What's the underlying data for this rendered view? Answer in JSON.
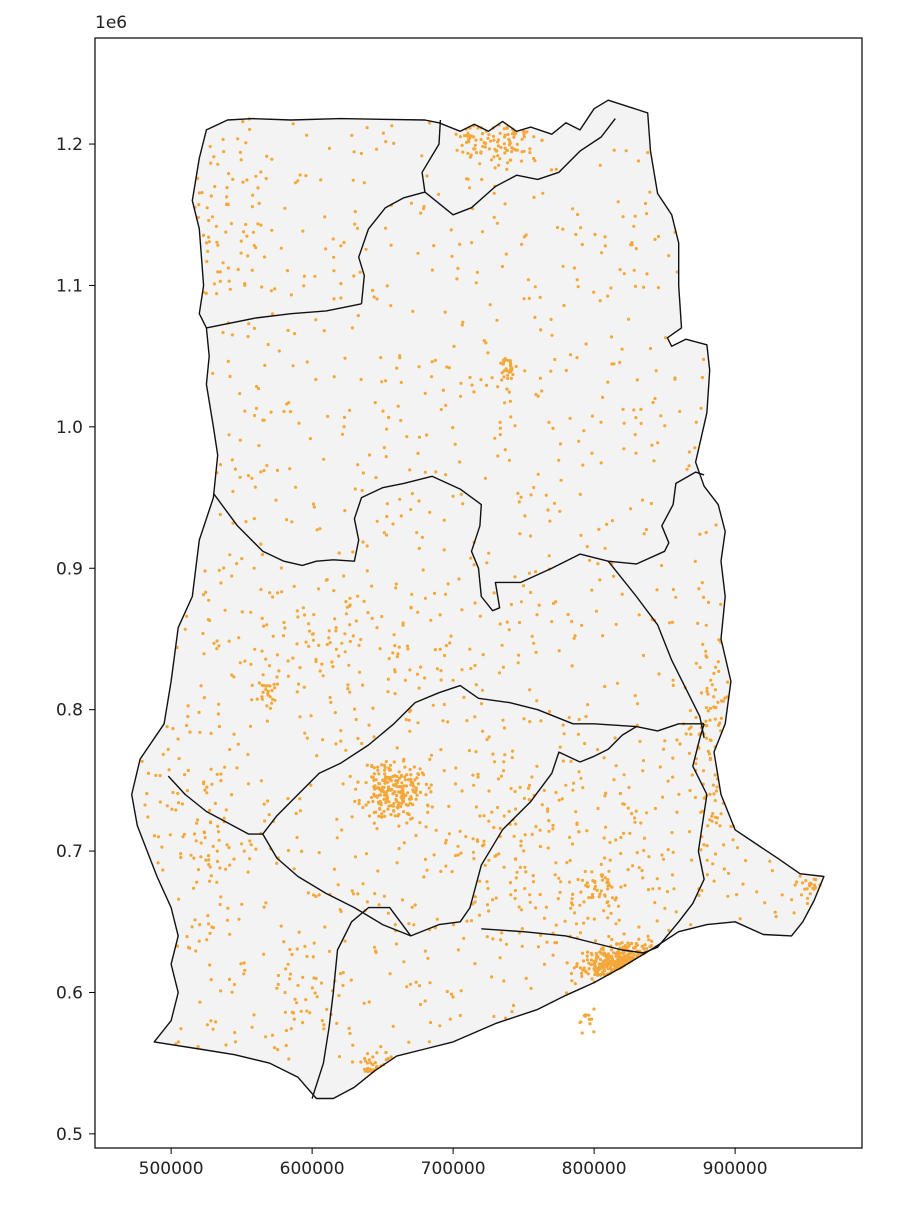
{
  "chart_data": {
    "type": "scatter",
    "title": "",
    "xlabel": "",
    "ylabel": "",
    "y_offset_label": "1e6",
    "xlim": [
      446000,
      990000
    ],
    "ylim": [
      490000,
      1275000
    ],
    "x_ticks": [
      500000,
      600000,
      700000,
      800000,
      900000
    ],
    "x_tick_labels": [
      "500000",
      "600000",
      "700000",
      "800000",
      "900000"
    ],
    "y_ticks": [
      500000,
      600000,
      700000,
      800000,
      900000,
      1000000,
      1100000,
      1200000
    ],
    "y_tick_labels": [
      "0.5",
      "0.6",
      "0.7",
      "0.8",
      "0.9",
      "1.0",
      "1.1",
      "1.2"
    ],
    "grid": false,
    "colors": {
      "land": "#f3f3f3",
      "boundary": "#111111",
      "points": "#f5a83a"
    },
    "regions": [
      {
        "points": [
          [
            488000,
            565000
          ],
          [
            520000,
            560000
          ],
          [
            545000,
            556000
          ],
          [
            570000,
            550000
          ],
          [
            590000,
            540000
          ],
          [
            603000,
            525000
          ],
          [
            615000,
            525000
          ],
          [
            630000,
            533000
          ],
          [
            645000,
            545000
          ],
          [
            660000,
            555000
          ],
          [
            680000,
            560000
          ],
          [
            700000,
            565000
          ],
          [
            730000,
            578000
          ],
          [
            760000,
            588000
          ],
          [
            780000,
            598000
          ],
          [
            800000,
            607000
          ],
          [
            820000,
            618000
          ],
          [
            840000,
            630000
          ],
          [
            860000,
            643000
          ],
          [
            880000,
            648000
          ],
          [
            900000,
            650000
          ],
          [
            920000,
            641000
          ],
          [
            940000,
            640000
          ],
          [
            948000,
            650000
          ],
          [
            956000,
            665000
          ],
          [
            963000,
            682000
          ],
          [
            946000,
            684000
          ],
          [
            930000,
            695000
          ],
          [
            915000,
            705000
          ],
          [
            900000,
            715000
          ],
          [
            890000,
            740000
          ],
          [
            885000,
            770000
          ],
          [
            893000,
            790000
          ],
          [
            897000,
            820000
          ],
          [
            890000,
            850000
          ],
          [
            893000,
            880000
          ],
          [
            890000,
            905000
          ],
          [
            893000,
            926000
          ],
          [
            888000,
            945000
          ],
          [
            878000,
            958000
          ],
          [
            872000,
            975000
          ],
          [
            880000,
            1010000
          ],
          [
            882000,
            1040000
          ],
          [
            880000,
            1058000
          ],
          [
            865000,
            1062000
          ],
          [
            855000,
            1057000
          ],
          [
            852000,
            1063000
          ],
          [
            862000,
            1070000
          ],
          [
            860000,
            1100000
          ],
          [
            860000,
            1130000
          ],
          [
            855000,
            1150000
          ],
          [
            845000,
            1165000
          ],
          [
            840000,
            1195000
          ],
          [
            838000,
            1222000
          ],
          [
            810000,
            1231000
          ],
          [
            800000,
            1225000
          ],
          [
            790000,
            1210000
          ],
          [
            780000,
            1215000
          ],
          [
            770000,
            1207000
          ],
          [
            755000,
            1212000
          ],
          [
            745000,
            1209000
          ],
          [
            735000,
            1216000
          ],
          [
            725000,
            1209000
          ],
          [
            715000,
            1214000
          ],
          [
            705000,
            1209000
          ],
          [
            690000,
            1215000
          ],
          [
            680000,
            1217000
          ],
          [
            620000,
            1218000
          ],
          [
            585000,
            1217000
          ],
          [
            558000,
            1218000
          ],
          [
            540000,
            1217000
          ],
          [
            525000,
            1210000
          ],
          [
            520000,
            1190000
          ],
          [
            515000,
            1160000
          ],
          [
            520000,
            1140000
          ],
          [
            523000,
            1100000
          ],
          [
            520000,
            1080000
          ],
          [
            525000,
            1070000
          ],
          [
            527000,
            1050000
          ],
          [
            525000,
            1030000
          ],
          [
            530000,
            1000000
          ],
          [
            533000,
            980000
          ],
          [
            530000,
            950000
          ],
          [
            520000,
            920000
          ],
          [
            515000,
            880000
          ],
          [
            505000,
            858000
          ],
          [
            500000,
            820000
          ],
          [
            495000,
            790000
          ],
          [
            478000,
            765000
          ],
          [
            472000,
            740000
          ],
          [
            476000,
            718000
          ],
          [
            490000,
            682000
          ],
          [
            500000,
            660000
          ],
          [
            505000,
            640000
          ],
          [
            500000,
            620000
          ],
          [
            505000,
            600000
          ],
          [
            500000,
            580000
          ]
        ]
      }
    ],
    "boundaries": [
      [
        [
          525000,
          1070000
        ],
        [
          560000,
          1077000
        ],
        [
          585000,
          1080000
        ],
        [
          610000,
          1082000
        ],
        [
          625000,
          1085000
        ],
        [
          635000,
          1087000
        ]
      ],
      [
        [
          635000,
          1087000
        ],
        [
          637000,
          1107000
        ],
        [
          633000,
          1120000
        ],
        [
          640000,
          1140000
        ],
        [
          652000,
          1155000
        ],
        [
          665000,
          1162000
        ],
        [
          680000,
          1166000
        ]
      ],
      [
        [
          680000,
          1166000
        ],
        [
          678000,
          1180000
        ],
        [
          690000,
          1200000
        ],
        [
          691000,
          1217000
        ]
      ],
      [
        [
          680000,
          1166000
        ],
        [
          700000,
          1150000
        ],
        [
          713000,
          1155000
        ],
        [
          730000,
          1170000
        ],
        [
          745000,
          1178000
        ],
        [
          760000,
          1175000
        ],
        [
          775000,
          1180000
        ],
        [
          790000,
          1195000
        ],
        [
          805000,
          1205000
        ],
        [
          815000,
          1218000
        ]
      ],
      [
        [
          530000,
          953000
        ],
        [
          547000,
          930000
        ],
        [
          565000,
          912000
        ],
        [
          580000,
          905000
        ],
        [
          593000,
          902000
        ],
        [
          603000,
          905000
        ],
        [
          615000,
          906000
        ],
        [
          630000,
          905000
        ],
        [
          633000,
          920000
        ],
        [
          630000,
          935000
        ],
        [
          635000,
          950000
        ],
        [
          650000,
          957000
        ],
        [
          665000,
          960000
        ],
        [
          685000,
          965000
        ],
        [
          705000,
          956000
        ],
        [
          720000,
          945000
        ],
        [
          719000,
          930000
        ],
        [
          713000,
          912000
        ],
        [
          718000,
          900000
        ],
        [
          720000,
          880000
        ],
        [
          728000,
          870000
        ],
        [
          733000,
          872000
        ],
        [
          730000,
          890000
        ],
        [
          748000,
          890000
        ],
        [
          770000,
          900000
        ],
        [
          790000,
          910000
        ],
        [
          810000,
          905000
        ],
        [
          830000,
          903000
        ],
        [
          850000,
          912000
        ],
        [
          853000,
          918000
        ],
        [
          848000,
          930000
        ],
        [
          856000,
          945000
        ],
        [
          858000,
          960000
        ],
        [
          872000,
          968000
        ],
        [
          878000,
          966000
        ]
      ],
      [
        [
          810000,
          905000
        ],
        [
          830000,
          880000
        ],
        [
          845000,
          860000
        ],
        [
          855000,
          835000
        ],
        [
          865000,
          815000
        ],
        [
          875000,
          795000
        ],
        [
          878000,
          780000
        ]
      ],
      [
        [
          498000,
          753000
        ],
        [
          510000,
          740000
        ],
        [
          525000,
          728000
        ],
        [
          540000,
          720000
        ],
        [
          555000,
          712000
        ],
        [
          565000,
          712000
        ],
        [
          575000,
          725000
        ],
        [
          590000,
          740000
        ],
        [
          605000,
          755000
        ],
        [
          620000,
          762000
        ],
        [
          640000,
          775000
        ],
        [
          658000,
          790000
        ],
        [
          673000,
          805000
        ],
        [
          690000,
          812000
        ],
        [
          705000,
          817000
        ],
        [
          718000,
          808000
        ],
        [
          740000,
          805000
        ],
        [
          760000,
          800000
        ],
        [
          785000,
          790000
        ],
        [
          800000,
          790000
        ],
        [
          830000,
          788000
        ],
        [
          845000,
          785000
        ],
        [
          860000,
          790000
        ],
        [
          878000,
          790000
        ]
      ],
      [
        [
          830000,
          788000
        ],
        [
          820000,
          782000
        ],
        [
          810000,
          772000
        ],
        [
          800000,
          767000
        ],
        [
          790000,
          763000
        ]
      ],
      [
        [
          565000,
          712000
        ],
        [
          575000,
          695000
        ],
        [
          590000,
          682000
        ],
        [
          610000,
          670000
        ],
        [
          630000,
          660000
        ],
        [
          650000,
          648000
        ],
        [
          670000,
          640000
        ],
        [
          690000,
          648000
        ],
        [
          705000,
          650000
        ],
        [
          712000,
          660000
        ],
        [
          720000,
          690000
        ],
        [
          735000,
          715000
        ],
        [
          755000,
          735000
        ],
        [
          770000,
          755000
        ],
        [
          775000,
          770000
        ],
        [
          790000,
          763000
        ]
      ],
      [
        [
          720000,
          645000
        ],
        [
          750000,
          643000
        ],
        [
          780000,
          640000
        ],
        [
          800000,
          635000
        ],
        [
          820000,
          630000
        ],
        [
          835000,
          628000
        ],
        [
          845000,
          632000
        ],
        [
          860000,
          650000
        ],
        [
          870000,
          663000
        ],
        [
          878000,
          680000
        ],
        [
          874000,
          700000
        ],
        [
          880000,
          740000
        ],
        [
          870000,
          760000
        ],
        [
          875000,
          780000
        ],
        [
          878000,
          790000
        ]
      ],
      [
        [
          600000,
          525000
        ],
        [
          608000,
          550000
        ],
        [
          612000,
          575000
        ],
        [
          615000,
          600000
        ],
        [
          618000,
          630000
        ],
        [
          628000,
          650000
        ],
        [
          640000,
          660000
        ],
        [
          655000,
          660000
        ],
        [
          670000,
          640000
        ]
      ]
    ],
    "clusters": [
      {
        "x": 658000,
        "y": 743000,
        "sx": 11000,
        "sy": 11000,
        "n": 220,
        "seed": 11
      },
      {
        "x": 813000,
        "y": 619000,
        "sx": 10000,
        "sy": 6000,
        "n": 200,
        "seed": 23
      },
      {
        "x": 828000,
        "y": 628000,
        "sx": 10000,
        "sy": 5000,
        "n": 60,
        "seed": 29
      },
      {
        "x": 738000,
        "y": 1207000,
        "sx": 11000,
        "sy": 10000,
        "n": 70,
        "seed": 37
      },
      {
        "x": 712000,
        "y": 1200000,
        "sx": 6000,
        "sy": 6000,
        "n": 30,
        "seed": 41
      },
      {
        "x": 738000,
        "y": 1041000,
        "sx": 4000,
        "sy": 4000,
        "n": 30,
        "seed": 47
      },
      {
        "x": 806000,
        "y": 674000,
        "sx": 8000,
        "sy": 9000,
        "n": 40,
        "seed": 53
      },
      {
        "x": 569000,
        "y": 812000,
        "sx": 4000,
        "sy": 5000,
        "n": 25,
        "seed": 59
      },
      {
        "x": 650000,
        "y": 545000,
        "sx": 7000,
        "sy": 5000,
        "n": 25,
        "seed": 61
      },
      {
        "x": 885000,
        "y": 760000,
        "sx": 10000,
        "sy": 45000,
        "n": 90,
        "seed": 67
      },
      {
        "x": 955000,
        "y": 678000,
        "sx": 7000,
        "sy": 6000,
        "n": 20,
        "seed": 71
      },
      {
        "x": 640000,
        "y": 845000,
        "sx": 55000,
        "sy": 35000,
        "n": 90,
        "seed": 73
      },
      {
        "x": 760000,
        "y": 700000,
        "sx": 45000,
        "sy": 40000,
        "n": 160,
        "seed": 79
      },
      {
        "x": 540000,
        "y": 1140000,
        "sx": 20000,
        "sy": 35000,
        "n": 55,
        "seed": 83
      },
      {
        "x": 600000,
        "y": 600000,
        "sx": 16000,
        "sy": 18000,
        "n": 35,
        "seed": 89
      },
      {
        "x": 520000,
        "y": 700000,
        "sx": 25000,
        "sy": 60000,
        "n": 90,
        "seed": 97
      },
      {
        "x": 795000,
        "y": 580000,
        "sx": 3000,
        "sy": 4000,
        "n": 12,
        "seed": 101
      }
    ],
    "background_points": {
      "n": 1100,
      "seed": 7
    }
  }
}
